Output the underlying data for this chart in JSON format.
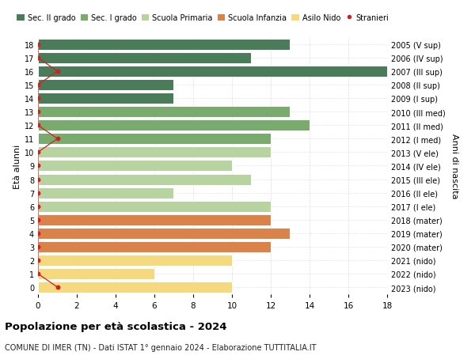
{
  "ages": [
    18,
    17,
    16,
    15,
    14,
    13,
    12,
    11,
    10,
    9,
    8,
    7,
    6,
    5,
    4,
    3,
    2,
    1,
    0
  ],
  "right_labels": [
    "2005 (V sup)",
    "2006 (IV sup)",
    "2007 (III sup)",
    "2008 (II sup)",
    "2009 (I sup)",
    "2010 (III med)",
    "2011 (II med)",
    "2012 (I med)",
    "2013 (V ele)",
    "2014 (IV ele)",
    "2015 (III ele)",
    "2016 (II ele)",
    "2017 (I ele)",
    "2018 (mater)",
    "2019 (mater)",
    "2020 (mater)",
    "2021 (nido)",
    "2022 (nido)",
    "2023 (nido)"
  ],
  "bar_values": [
    13,
    11,
    18,
    7,
    7,
    13,
    14,
    12,
    12,
    10,
    11,
    7,
    12,
    12,
    13,
    12,
    10,
    6,
    10
  ],
  "bar_colors": [
    "#4a7c59",
    "#4a7c59",
    "#4a7c59",
    "#4a7c59",
    "#4a7c59",
    "#7aab6e",
    "#7aab6e",
    "#7aab6e",
    "#b7d4a0",
    "#b7d4a0",
    "#b7d4a0",
    "#b7d4a0",
    "#b7d4a0",
    "#d9834a",
    "#d9834a",
    "#d9834a",
    "#f5d97e",
    "#f5d97e",
    "#f5d97e"
  ],
  "stranieri_x": [
    0,
    0,
    1,
    0,
    0,
    0,
    0,
    1,
    0,
    0,
    0,
    0,
    0,
    0,
    0,
    0,
    0,
    0,
    1
  ],
  "legend_labels": [
    "Sec. II grado",
    "Sec. I grado",
    "Scuola Primaria",
    "Scuola Infanzia",
    "Asilo Nido",
    "Stranieri"
  ],
  "legend_colors": [
    "#4a7c59",
    "#7aab6e",
    "#b7d4a0",
    "#d9834a",
    "#f5d97e",
    "#cc2222"
  ],
  "xlabel": "Età alunni",
  "ylabel": "Anni di nascita",
  "title": "Popolazione per età scolastica - 2024",
  "subtitle": "COMUNE DI IMER (TN) - Dati ISTAT 1° gennaio 2024 - Elaborazione TUTTITALIA.IT",
  "xlim": [
    0,
    18
  ],
  "background_color": "#ffffff",
  "grid_color": "#dddddd"
}
